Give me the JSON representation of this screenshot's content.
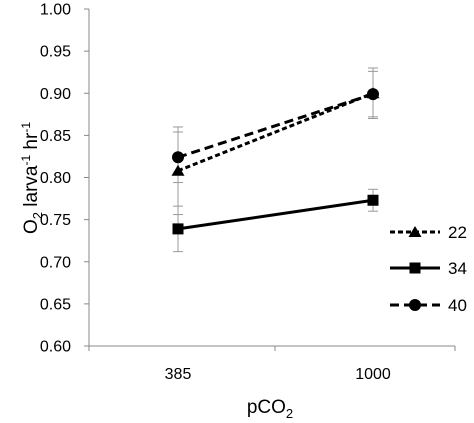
{
  "chart_data": {
    "type": "line",
    "categories": [
      "385",
      "1000"
    ],
    "ylabel": {
      "main": "O",
      "sub1": "2",
      "mid1": " larva",
      "sup1": "-1",
      "mid2": " hr",
      "sup2": "-1"
    },
    "xlabel": {
      "main": "pCO",
      "sub": "2"
    },
    "ylim": [
      0.6,
      1.0
    ],
    "yticks": [
      "0.60",
      "0.65",
      "0.70",
      "0.75",
      "0.80",
      "0.85",
      "0.90",
      "0.95",
      "1.00"
    ],
    "grid": false,
    "legend_position": "right",
    "series": [
      {
        "name": "22",
        "values": [
          0.808,
          0.9
        ],
        "errors": [
          0.052,
          0.03
        ],
        "marker": "triangle",
        "dash": "dotted",
        "color": "#000000"
      },
      {
        "name": "34",
        "values": [
          0.739,
          0.773
        ],
        "errors": [
          0.027,
          0.013
        ],
        "marker": "square",
        "dash": "solid",
        "color": "#000000"
      },
      {
        "name": "40",
        "values": [
          0.824,
          0.899
        ],
        "errors": [
          0.03,
          0.027
        ],
        "marker": "circle",
        "dash": "dashed",
        "color": "#000000"
      }
    ]
  }
}
